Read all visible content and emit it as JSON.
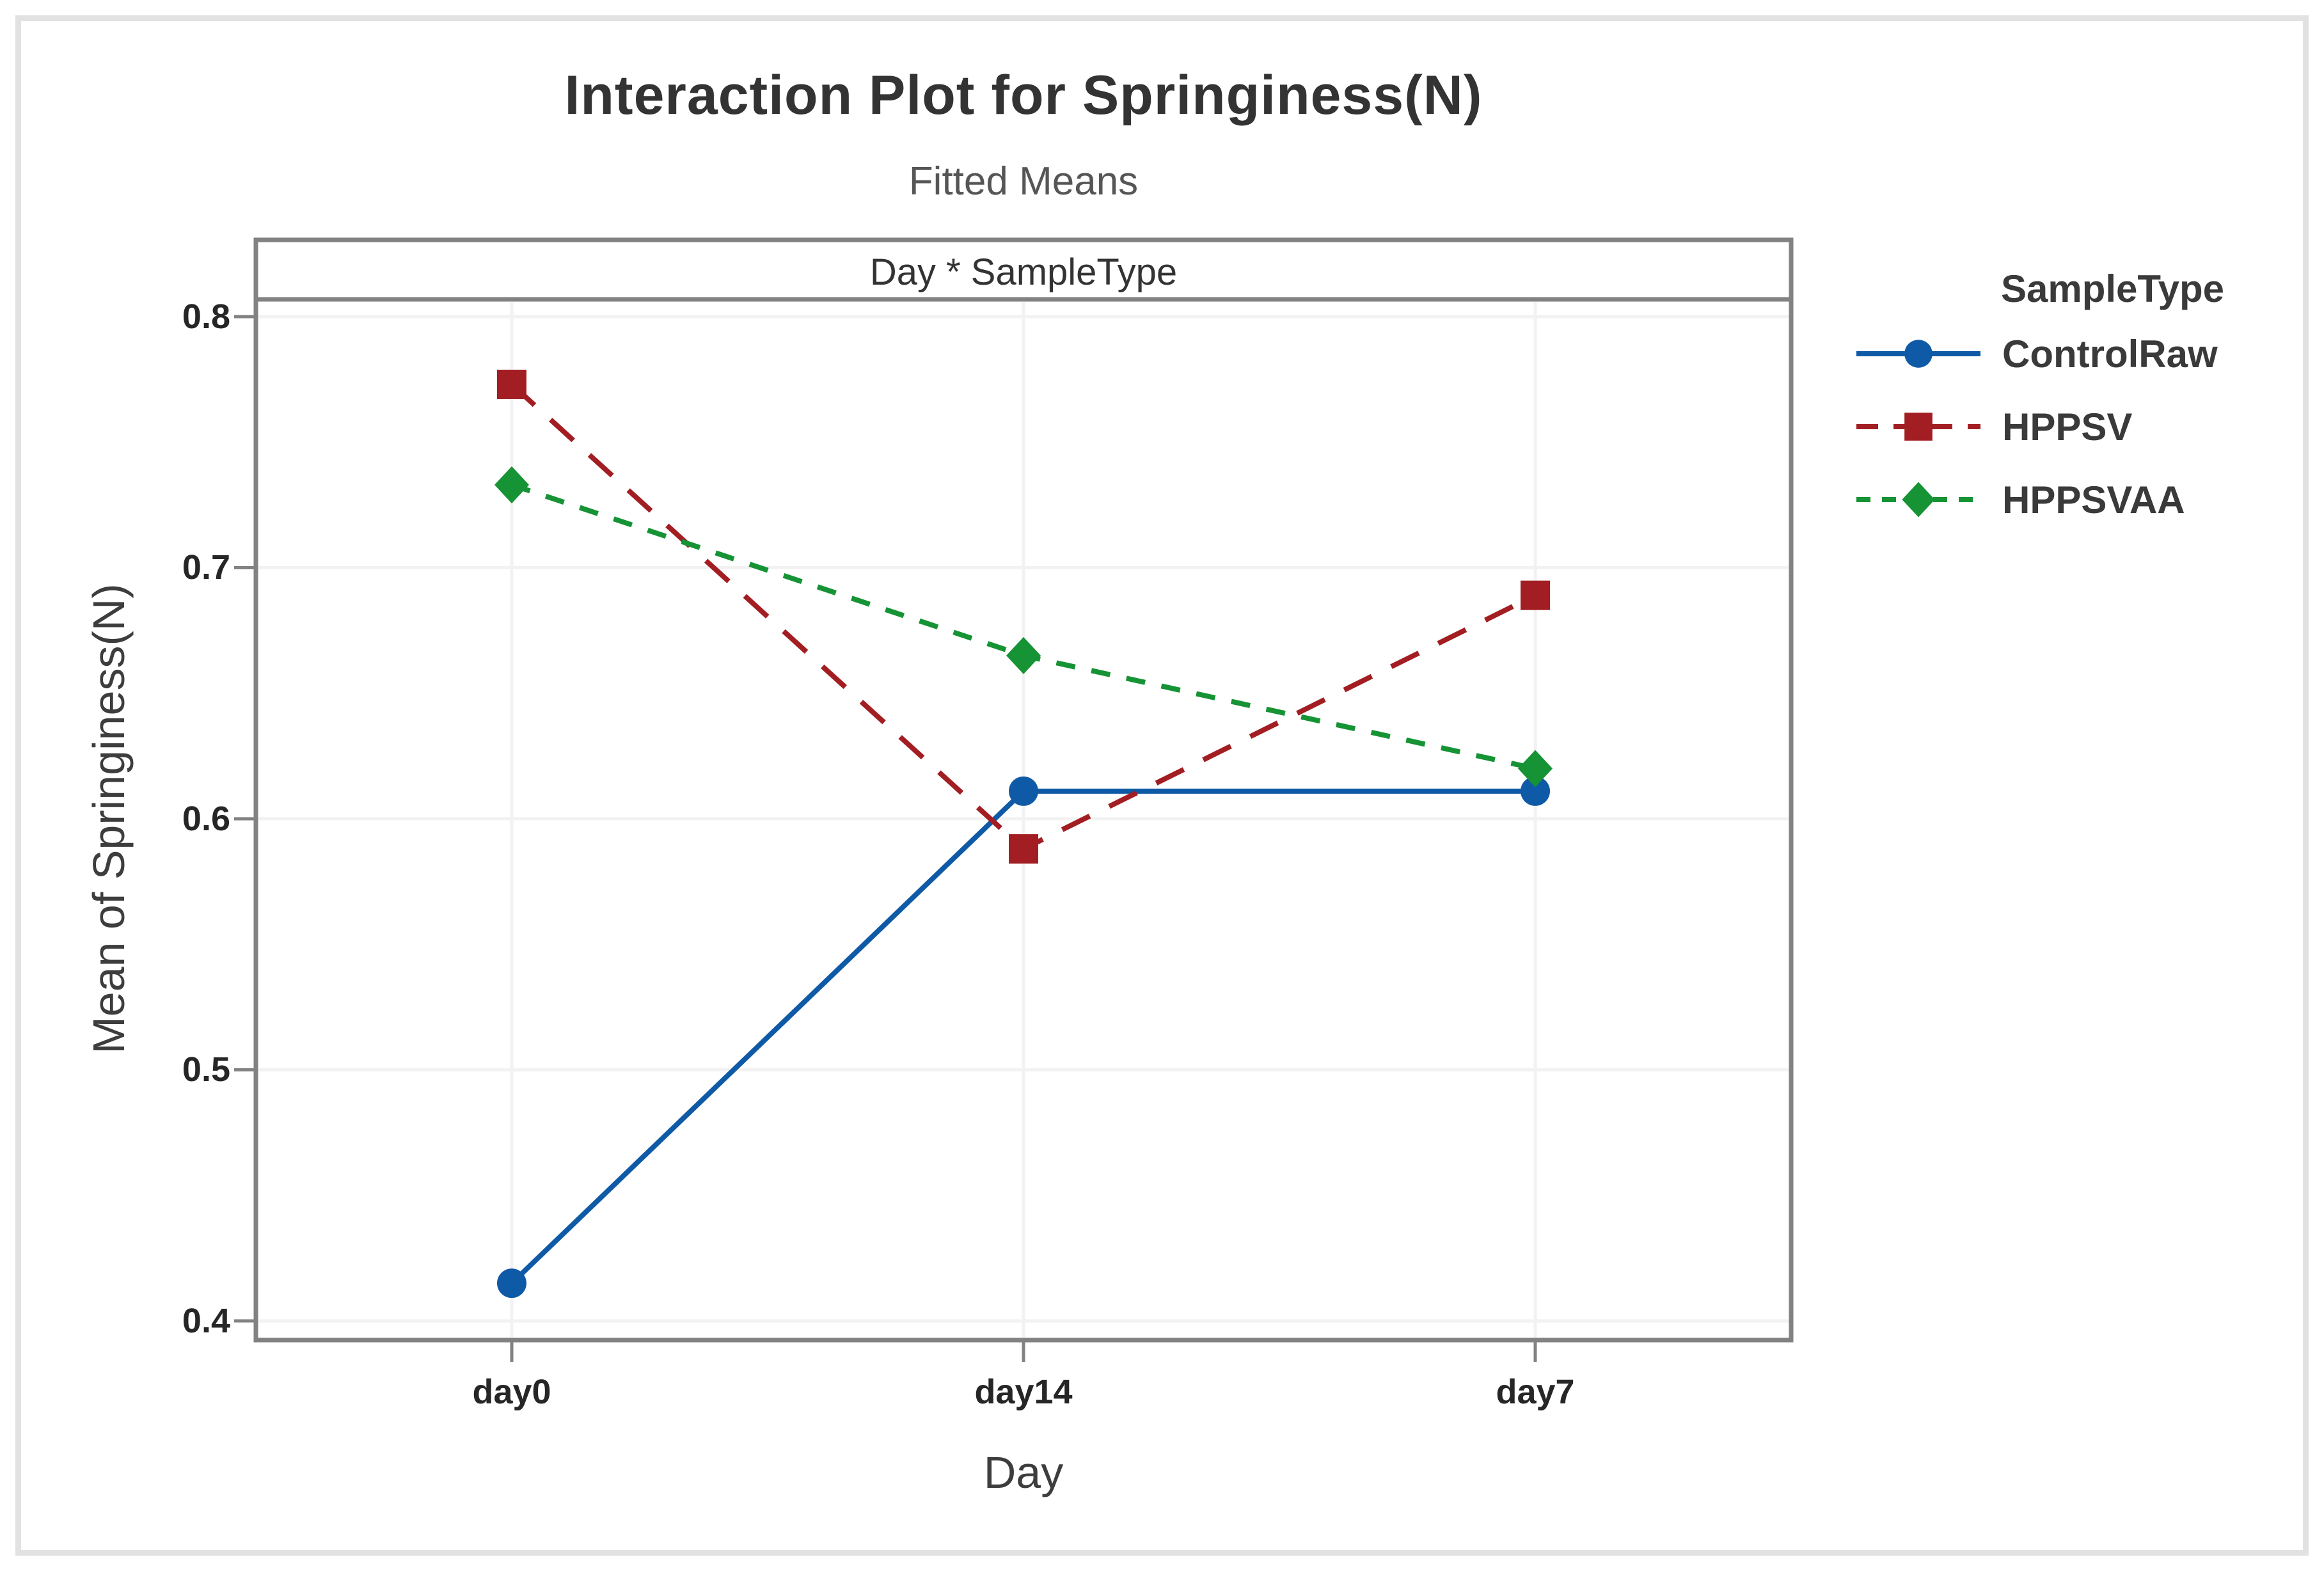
{
  "chart_data": {
    "type": "line",
    "title": "Interaction Plot for Springiness(N)",
    "subtitle": "Fitted Means",
    "panel_header": "Day * SampleType",
    "xlabel": "Day",
    "ylabel": "Mean of Springiness(N)",
    "legend_title": "SampleType",
    "categories": [
      "day0",
      "day14",
      "day7"
    ],
    "series": [
      {
        "name": "ControlRaw",
        "values": [
          0.415,
          0.611,
          0.611
        ],
        "color": "#0f5aa6",
        "marker": "circle",
        "line_style": "solid"
      },
      {
        "name": "HPPSV",
        "values": [
          0.773,
          0.588,
          0.689
        ],
        "color": "#a21e23",
        "marker": "square",
        "line_style": "dash"
      },
      {
        "name": "HPPSVAA",
        "values": [
          0.733,
          0.665,
          0.62
        ],
        "color": "#169334",
        "marker": "diamond",
        "line_style": "short-dash"
      }
    ],
    "yticks": [
      0.4,
      0.5,
      0.6,
      0.7,
      0.8
    ],
    "ylim": [
      0.392,
      0.807
    ],
    "grid": true,
    "legend_position": "right",
    "frame_color": "#828282",
    "grid_color": "#f2f2f2"
  }
}
